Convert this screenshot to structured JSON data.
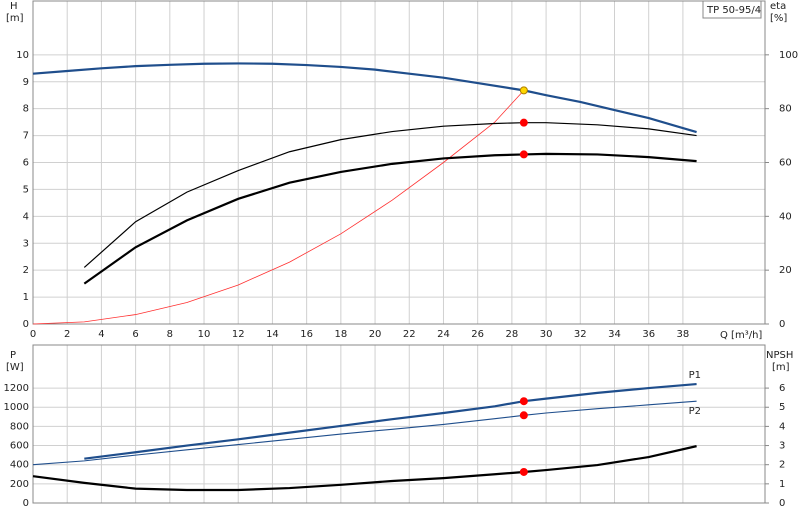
{
  "chart_data": [
    {
      "type": "line",
      "y_label": "H",
      "y_unit": "[m]",
      "y2_label": "eta",
      "y2_unit": "[%]",
      "x_label": "Q [m³/h]",
      "title": "TP 50-95/4",
      "xlim": [
        0,
        42.8
      ],
      "xticks": [
        0,
        2,
        4,
        6,
        8,
        10,
        12,
        14,
        16,
        18,
        20,
        22,
        24,
        26,
        28,
        30,
        32,
        34,
        36,
        38
      ],
      "ylim": [
        0,
        12
      ],
      "yticks": [
        0,
        1,
        2,
        3,
        4,
        5,
        6,
        7,
        8,
        9,
        10
      ],
      "y2lim": [
        0,
        120
      ],
      "y2ticks": [
        0,
        20,
        40,
        60,
        80,
        100
      ],
      "grid": true,
      "series": [
        {
          "color": "#1f4e8c",
          "line_width": 2.2,
          "x": [
            0,
            2,
            4,
            6,
            8,
            10,
            12,
            14,
            16,
            18,
            20,
            22,
            24,
            26,
            28,
            28.7,
            30,
            32,
            34,
            36,
            38.8
          ],
          "values": [
            9.3,
            9.4,
            9.5,
            9.58,
            9.63,
            9.67,
            9.68,
            9.67,
            9.62,
            9.55,
            9.45,
            9.3,
            9.15,
            8.95,
            8.75,
            8.68,
            8.5,
            8.25,
            7.95,
            7.65,
            7.13
          ]
        },
        {
          "color": "#ff3030",
          "line_width": 0.8,
          "x": [
            0,
            3,
            6,
            9,
            12,
            15,
            18,
            21,
            24,
            27,
            28.7
          ],
          "values": [
            0,
            0.08,
            0.35,
            0.8,
            1.45,
            2.3,
            3.35,
            4.6,
            6.0,
            7.5,
            8.68
          ]
        },
        {
          "color": "#000000",
          "line_width": 1.2,
          "axis": "y2",
          "x": [
            3,
            6,
            9,
            12,
            15,
            18,
            21,
            24,
            27,
            28.7,
            30,
            33,
            36,
            38.8
          ],
          "values": [
            21,
            38,
            49,
            57,
            64,
            68.5,
            71.5,
            73.5,
            74.5,
            74.8,
            74.8,
            74,
            72.5,
            70
          ]
        },
        {
          "color": "#000000",
          "line_width": 2.2,
          "axis": "y2",
          "x": [
            3,
            6,
            9,
            12,
            15,
            18,
            21,
            24,
            27,
            28.7,
            30,
            33,
            36,
            38.8
          ],
          "values": [
            15,
            28.5,
            38.5,
            46.5,
            52.5,
            56.5,
            59.5,
            61.5,
            62.7,
            63,
            63.2,
            63,
            62,
            60.5
          ]
        }
      ],
      "markers": [
        {
          "x": 28.7,
          "y": 8.68,
          "color": "#ffd700"
        },
        {
          "x": 28.7,
          "y": 74.8,
          "color": "#ff0000",
          "axis": "y2"
        },
        {
          "x": 28.7,
          "y": 63,
          "color": "#ff0000",
          "axis": "y2"
        }
      ]
    },
    {
      "type": "line",
      "y_label": "P",
      "y_unit": "[W]",
      "y2_label": "NPSH",
      "y2_unit": "[m]",
      "xlim": [
        0,
        42.8
      ],
      "xticks": [
        0,
        2,
        4,
        6,
        8,
        10,
        12,
        14,
        16,
        18,
        20,
        22,
        24,
        26,
        28,
        30,
        32,
        34,
        36,
        38
      ],
      "ylim": [
        0,
        1650
      ],
      "yticks": [
        0,
        200,
        400,
        600,
        800,
        1000,
        1200
      ],
      "y2lim": [
        0,
        8.25
      ],
      "y2ticks": [
        0,
        1,
        2,
        3,
        4,
        5,
        6
      ],
      "grid": true,
      "series": [
        {
          "name": "P1",
          "color": "#1f4e8c",
          "line_width": 2.2,
          "x": [
            3,
            6,
            9,
            12,
            15,
            18,
            21,
            24,
            27,
            28.7,
            30,
            33,
            36,
            38.8
          ],
          "values": [
            463,
            530,
            600,
            665,
            735,
            805,
            875,
            940,
            1010,
            1063,
            1090,
            1150,
            1200,
            1242
          ]
        },
        {
          "name": "P2",
          "color": "#1f4e8c",
          "line_width": 1.1,
          "x": [
            0,
            3,
            6,
            9,
            12,
            15,
            18,
            21,
            24,
            27,
            28.7,
            30,
            33,
            36,
            38.8
          ],
          "values": [
            400,
            440,
            500,
            555,
            610,
            665,
            720,
            770,
            820,
            880,
            916,
            940,
            985,
            1025,
            1063
          ]
        },
        {
          "color": "#000000",
          "line_width": 2.2,
          "axis": "y2",
          "x": [
            0,
            3,
            6,
            9,
            12,
            15,
            18,
            21,
            24,
            27,
            28.7,
            30,
            33,
            36,
            38.8
          ],
          "values": [
            1.4,
            1.05,
            0.75,
            0.68,
            0.68,
            0.78,
            0.95,
            1.15,
            1.3,
            1.5,
            1.62,
            1.72,
            1.98,
            2.4,
            2.97
          ]
        }
      ],
      "markers": [
        {
          "x": 28.7,
          "y": 1063,
          "color": "#ff0000"
        },
        {
          "x": 28.7,
          "y": 916,
          "color": "#ff0000"
        },
        {
          "x": 28.7,
          "y": 1.62,
          "color": "#ff0000",
          "axis": "y2"
        }
      ]
    }
  ]
}
